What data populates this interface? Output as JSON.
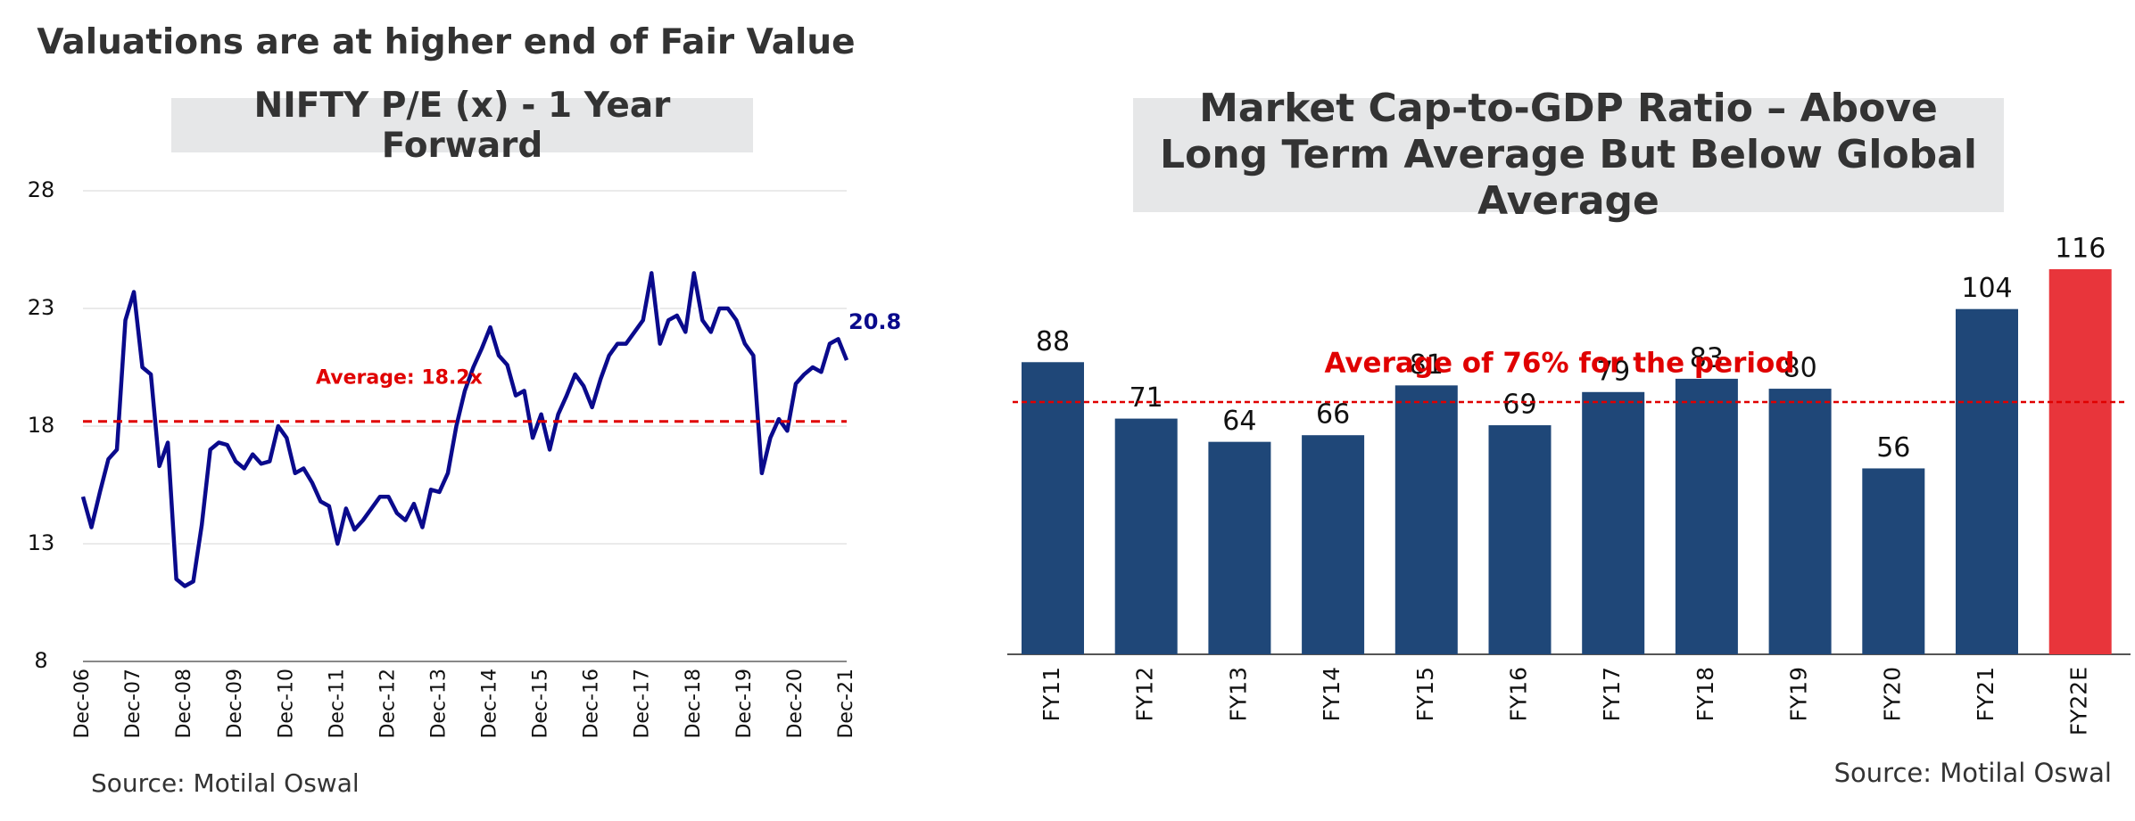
{
  "chart_data": [
    {
      "type": "line",
      "heading": "Valuations are at higher end of Fair Value",
      "title": "NIFTY P/E (x) - 1 Year Forward",
      "source": "Source: Motilal Oswal",
      "color": "#0a0a8c",
      "categories": [
        "Dec-06",
        null,
        null,
        null,
        null,
        null,
        "Dec-07",
        null,
        null,
        null,
        null,
        null,
        "Dec-08",
        null,
        null,
        null,
        null,
        null,
        "Dec-09",
        null,
        null,
        null,
        null,
        null,
        "Dec-10",
        null,
        null,
        null,
        null,
        null,
        "Dec-11",
        null,
        null,
        null,
        null,
        null,
        "Dec-12",
        null,
        null,
        null,
        null,
        null,
        "Dec-13",
        null,
        null,
        null,
        null,
        null,
        "Dec-14",
        null,
        null,
        null,
        null,
        null,
        "Dec-15",
        null,
        null,
        null,
        null,
        null,
        "Dec-16",
        null,
        null,
        null,
        null,
        null,
        "Dec-17",
        null,
        null,
        null,
        null,
        null,
        "Dec-18",
        null,
        null,
        null,
        null,
        null,
        "Dec-19",
        null,
        null,
        null,
        null,
        null,
        "Dec-20",
        null,
        null,
        null,
        null,
        null,
        "Dec-21"
      ],
      "values": [
        15.0,
        13.7,
        15.2,
        16.6,
        17.0,
        22.5,
        23.7,
        20.5,
        20.2,
        16.3,
        17.3,
        11.5,
        11.2,
        11.4,
        13.8,
        17.0,
        17.3,
        17.2,
        16.5,
        16.2,
        16.8,
        16.4,
        16.5,
        18.0,
        17.5,
        16.0,
        16.2,
        15.6,
        14.8,
        14.6,
        13.0,
        14.5,
        13.6,
        14.0,
        14.5,
        15.0,
        15.0,
        14.3,
        14.0,
        14.7,
        13.7,
        15.3,
        15.2,
        16.0,
        18.0,
        19.5,
        20.5,
        21.3,
        22.2,
        21.0,
        20.6,
        19.3,
        19.5,
        17.5,
        18.5,
        17.0,
        18.5,
        19.3,
        20.2,
        19.7,
        18.8,
        20.0,
        21.0,
        21.5,
        21.5,
        22.0,
        22.5,
        24.5,
        21.5,
        22.5,
        22.7,
        22.0,
        24.5,
        22.5,
        22.0,
        23.0,
        23.0,
        22.5,
        21.5,
        21.0,
        16.0,
        17.5,
        18.3,
        17.8,
        19.8,
        20.2,
        20.5,
        20.3,
        21.5,
        21.7,
        20.8
      ],
      "average": {
        "value": 18.2,
        "label": "Average: 18.2x",
        "color": "#e00000"
      },
      "ylim": [
        8,
        28
      ],
      "yticks": [
        8,
        13,
        18,
        23,
        28
      ],
      "grid": true
    },
    {
      "type": "bar",
      "title": "Market Cap-to-GDP Ratio – Above Long Term Average But Below Global Average",
      "source": "Source: Motilal Oswal",
      "categories": [
        "FY11",
        "FY12",
        "FY13",
        "FY14",
        "FY15",
        "FY16",
        "FY17",
        "FY18",
        "FY19",
        "FY20",
        "FY21",
        "FY22E"
      ],
      "values": [
        88,
        71,
        64,
        66,
        81,
        69,
        79,
        83,
        80,
        56,
        104,
        116
      ],
      "colors": [
        "#1f4778",
        "#1f4778",
        "#1f4778",
        "#1f4778",
        "#1f4778",
        "#1f4778",
        "#1f4778",
        "#1f4778",
        "#1f4778",
        "#1f4778",
        "#1f4778",
        "#e8353b"
      ],
      "average": {
        "value": 76,
        "label": "Average of 76% for the period",
        "color": "#e00000"
      }
    }
  ]
}
